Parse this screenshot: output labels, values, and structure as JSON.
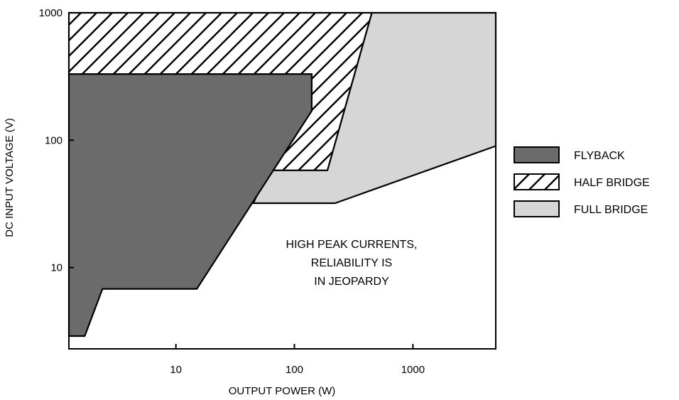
{
  "chart_data": {
    "type": "area",
    "x_scale": "log",
    "y_scale": "log",
    "xlim": [
      1.25,
      5000
    ],
    "ylim": [
      2.3,
      1000
    ],
    "xlabel": "OUTPUT POWER (W)",
    "ylabel": "DC INPUT VOLTAGE (V)",
    "x_ticks": [
      10,
      100,
      1000
    ],
    "x_tick_labels": [
      "10",
      "100",
      "1000"
    ],
    "y_ticks": [
      10,
      100,
      1000
    ],
    "y_tick_labels": [
      "10",
      "100",
      "1000"
    ],
    "grid": false,
    "legend_position": "right",
    "series": [
      {
        "name": "FULL BRIDGE",
        "fill": "#d6d6d6",
        "pattern": "solid",
        "polygon": [
          [
            45,
            32
          ],
          [
            220,
            32
          ],
          [
            5000,
            90
          ],
          [
            5000,
            1000
          ],
          [
            450,
            1000
          ],
          [
            190,
            58
          ],
          [
            60,
            58
          ]
        ]
      },
      {
        "name": "HALF BRIDGE",
        "fill": "#ffffff",
        "pattern": "hatch",
        "polygon": [
          [
            1.25,
            1000
          ],
          [
            450,
            1000
          ],
          [
            190,
            58
          ],
          [
            60,
            58
          ],
          [
            140,
            170
          ],
          [
            140,
            330
          ],
          [
            1.25,
            330
          ]
        ]
      },
      {
        "name": "FLYBACK",
        "fill": "#6b6b6b",
        "pattern": "solid",
        "polygon": [
          [
            1.25,
            2.9
          ],
          [
            1.7,
            2.9
          ],
          [
            2.4,
            6.8
          ],
          [
            15,
            6.8
          ],
          [
            140,
            170
          ],
          [
            140,
            330
          ],
          [
            1.25,
            330
          ]
        ]
      }
    ],
    "annotations": [
      "HIGH PEAK CURRENTS,",
      "RELIABILITY IS",
      "IN JEOPARDY"
    ]
  }
}
